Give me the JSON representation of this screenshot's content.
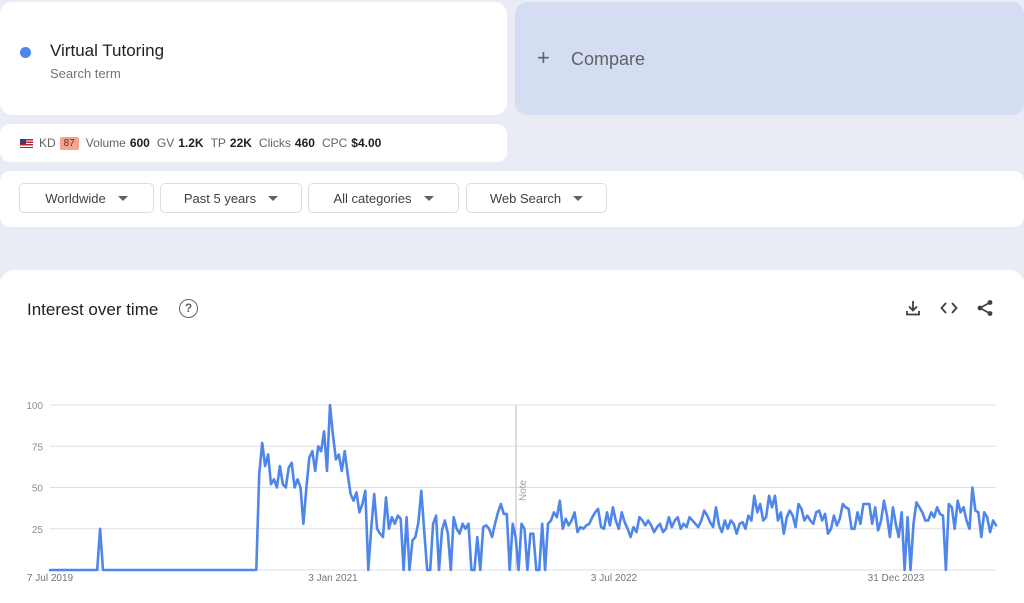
{
  "term": {
    "name": "Virtual Tutoring",
    "subtitle": "Search term",
    "color": "#4f86ec"
  },
  "compare": {
    "plus": "+",
    "label": "Compare"
  },
  "metrics": {
    "country_flag": "us-flag-icon",
    "kd_label": "KD",
    "kd_value": "87",
    "volume_label": "Volume",
    "volume_value": "600",
    "gv_label": "GV",
    "gv_value": "1.2K",
    "tp_label": "TP",
    "tp_value": "22K",
    "clicks_label": "Clicks",
    "clicks_value": "460",
    "cpc_label": "CPC",
    "cpc_value": "$4.00"
  },
  "filters": {
    "region": "Worldwide",
    "period": "Past 5 years",
    "category": "All categories",
    "search_type": "Web Search"
  },
  "chart_section": {
    "title": "Interest over time",
    "help_icon": "?",
    "icons": [
      "download-icon",
      "embed-icon",
      "share-icon"
    ]
  },
  "chart_data": {
    "type": "line",
    "title": "Interest over time",
    "ylim": [
      0,
      100
    ],
    "yticks": [
      25,
      50,
      75,
      100
    ],
    "xtick_labels": [
      "7 Jul 2019",
      "3 Jan 2021",
      "3 Jul 2022",
      "31 Dec 2023"
    ],
    "note_label": "Note",
    "grid": true,
    "series": [
      {
        "color": "#4f86ec",
        "values": [
          0,
          0,
          0,
          0,
          0,
          0,
          0,
          0,
          0,
          0,
          0,
          0,
          0,
          0,
          0,
          0,
          0,
          25,
          0,
          0,
          0,
          0,
          0,
          0,
          0,
          0,
          0,
          0,
          0,
          0,
          0,
          0,
          0,
          0,
          0,
          0,
          0,
          0,
          0,
          0,
          0,
          0,
          0,
          0,
          0,
          0,
          0,
          0,
          0,
          0,
          0,
          0,
          0,
          0,
          0,
          0,
          0,
          0,
          0,
          0,
          0,
          0,
          0,
          0,
          0,
          0,
          0,
          0,
          0,
          0,
          0,
          58,
          77,
          63,
          70,
          52,
          55,
          50,
          63,
          52,
          50,
          62,
          65,
          50,
          55,
          50,
          28,
          50,
          68,
          72,
          60,
          75,
          72,
          84,
          60,
          100,
          82,
          67,
          70,
          60,
          72,
          58,
          46,
          42,
          47,
          35,
          40,
          48,
          0,
          25,
          46,
          25,
          22,
          20,
          44,
          25,
          32,
          28,
          33,
          31,
          0,
          32,
          0,
          18,
          20,
          29,
          48,
          23,
          0,
          0,
          28,
          33,
          0,
          24,
          30,
          22,
          0,
          32,
          25,
          22,
          28,
          25,
          28,
          0,
          0,
          20,
          0,
          26,
          27,
          25,
          20,
          28,
          35,
          40,
          34,
          34,
          0,
          28,
          20,
          0,
          28,
          25,
          0,
          22,
          22,
          0,
          0,
          28,
          0,
          28,
          30,
          35,
          32,
          42,
          25,
          31,
          27,
          30,
          35,
          23,
          26,
          25,
          27,
          28,
          32,
          35,
          37,
          26,
          25,
          35,
          27,
          38,
          30,
          25,
          35,
          29,
          25,
          20,
          26,
          23,
          32,
          30,
          27,
          30,
          27,
          23,
          26,
          28,
          23,
          25,
          32,
          26,
          30,
          32,
          25,
          28,
          26,
          32,
          30,
          28,
          26,
          30,
          36,
          33,
          29,
          26,
          38,
          27,
          23,
          30,
          25,
          30,
          28,
          22,
          28,
          29,
          25,
          33,
          30,
          45,
          35,
          40,
          30,
          32,
          45,
          38,
          45,
          30,
          35,
          22,
          32,
          36,
          33,
          26,
          40,
          37,
          30,
          33,
          30,
          28,
          35,
          36,
          30,
          34,
          22,
          25,
          33,
          27,
          31,
          40,
          38,
          37,
          25,
          25,
          35,
          28,
          40,
          40,
          40,
          28,
          38,
          24,
          30,
          42,
          33,
          20,
          38,
          28,
          20,
          35,
          0,
          32,
          0,
          28,
          41,
          38,
          35,
          30,
          30,
          35,
          32,
          38,
          34,
          33,
          0,
          40,
          38,
          25,
          42,
          35,
          38,
          30,
          25,
          50,
          36,
          35,
          20,
          35,
          32,
          23,
          30,
          27
        ]
      }
    ]
  }
}
